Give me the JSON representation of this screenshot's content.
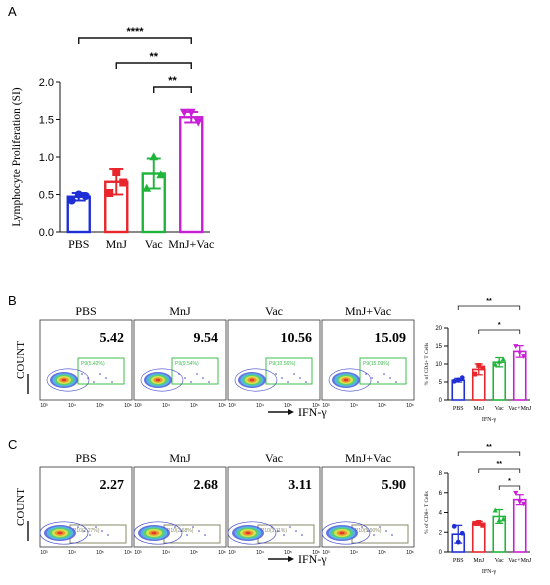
{
  "panel_labels": [
    "A",
    "B",
    "C"
  ],
  "colors": {
    "PBS": "#1f2fd6",
    "MnJ": "#e8262b",
    "Vac": "#1fb53a",
    "MnJ+Vac": "#c81fd6",
    "gate": "#3bbf4a",
    "gate_c": "#8a8a6a",
    "axis": "#111111"
  },
  "chart_data": [
    {
      "panel": "A",
      "type": "bar",
      "categories": [
        "PBS",
        "MnJ",
        "Vac",
        "MnJ+Vac"
      ],
      "values": [
        0.47,
        0.67,
        0.78,
        1.53
      ],
      "errors": [
        0.05,
        0.17,
        0.2,
        0.07
      ],
      "points": [
        [
          0.42,
          0.5,
          0.48
        ],
        [
          0.52,
          0.8,
          0.66
        ],
        [
          0.58,
          1.0,
          0.76
        ],
        [
          1.6,
          1.6,
          1.47
        ]
      ],
      "xlabel": "",
      "ylabel": "Lymphocyte Proliferation (SI)",
      "ylim": [
        0,
        2.0
      ],
      "yticks": [
        "0.0",
        "0.5",
        "1.0",
        "1.5",
        "2.0"
      ],
      "significance": [
        {
          "from": 0,
          "to": 3,
          "label": "****"
        },
        {
          "from": 1,
          "to": 3,
          "label": "**"
        },
        {
          "from": 2,
          "to": 3,
          "label": "**"
        }
      ]
    },
    {
      "panel": "B",
      "type": "bar",
      "categories": [
        "PBS",
        "MnJ",
        "Vac",
        "Vac+MnJ"
      ],
      "values": [
        5.5,
        8.5,
        10.5,
        13.5
      ],
      "errors": [
        0.5,
        1.5,
        1.3,
        1.6
      ],
      "points": [
        [
          5.2,
          5.6,
          6.2
        ],
        [
          7.2,
          9.6,
          8.9
        ],
        [
          9.8,
          10.6,
          11.3
        ],
        [
          15.0,
          13.2,
          12.2
        ]
      ],
      "ylabel": "% of CD4+ T Cells",
      "xlabel": "IFN-γ",
      "ylim": [
        0,
        20
      ],
      "yticks": [
        "0",
        "5",
        "10",
        "15",
        "20"
      ],
      "significance": [
        {
          "from": 0,
          "to": 3,
          "label": "**"
        },
        {
          "from": 1,
          "to": 3,
          "label": "*"
        }
      ]
    },
    {
      "panel": "C",
      "type": "bar",
      "categories": [
        "PBS",
        "MnJ",
        "Vac",
        "Vac+MnJ"
      ],
      "values": [
        1.8,
        2.9,
        3.6,
        5.3
      ],
      "errors": [
        0.9,
        0.2,
        0.7,
        0.5
      ],
      "points": [
        [
          2.6,
          1.0,
          1.9
        ],
        [
          2.9,
          3.0,
          2.7
        ],
        [
          4.2,
          3.2,
          3.3
        ],
        [
          6.0,
          5.1,
          4.9
        ]
      ],
      "ylabel": "% of CD8+ T Cells",
      "xlabel": "IFN-γ",
      "ylim": [
        0,
        8
      ],
      "yticks": [
        "0",
        "2",
        "4",
        "6",
        "8"
      ],
      "significance": [
        {
          "from": 0,
          "to": 3,
          "label": "**"
        },
        {
          "from": 1,
          "to": 3,
          "label": "**"
        },
        {
          "from": 2,
          "to": 3,
          "label": "*"
        }
      ]
    }
  ],
  "flow": {
    "B": {
      "titles": [
        "PBS",
        "MnJ",
        "Vac",
        "MnJ+Vac"
      ],
      "values": [
        "5.42",
        "9.54",
        "10.56",
        "15.09"
      ],
      "gate_labels": [
        "P9(5.42%)",
        "P9(9.54%)",
        "P9(10.56%)",
        "P9(15.09%)"
      ],
      "y_axis_label": "COUNT",
      "x_axis_label": "IFN-γ",
      "x_ticks": [
        "10³",
        "10⁴",
        "10⁵",
        "10⁶"
      ]
    },
    "C": {
      "titles": [
        "PBS",
        "MnJ",
        "Vac",
        "MnJ+Vac"
      ],
      "values": [
        "2.27",
        "2.68",
        "3.11",
        "5.90"
      ],
      "gate_labels": [
        "P10(2.27%)",
        "P10(2.68%)",
        "P10(3.11%)",
        "P10(5.90%)"
      ],
      "y_axis_label": "COUNT",
      "x_axis_label": "IFN-γ",
      "x_ticks": [
        "10³",
        "10⁴",
        "10⁵",
        "10⁶"
      ]
    }
  }
}
